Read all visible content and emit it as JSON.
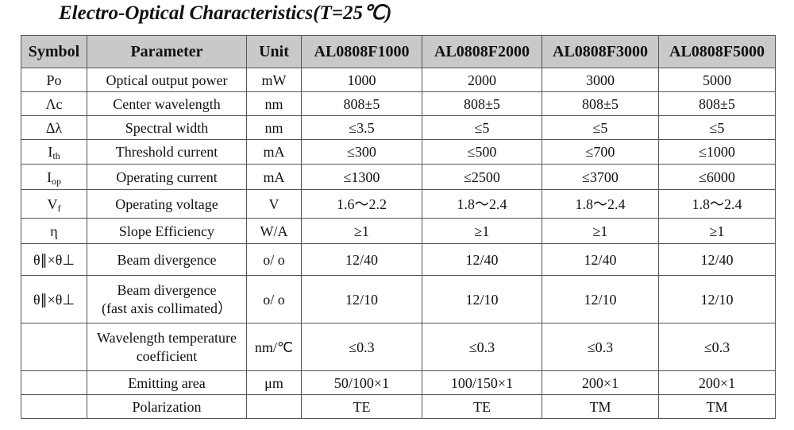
{
  "title": "Electro-Optical Characteristics(T=25℃)",
  "table": {
    "headers": [
      "Symbol",
      "Parameter",
      "Unit",
      "AL0808F1000",
      "AL0808F2000",
      "AL0808F3000",
      "AL0808F5000"
    ],
    "rows": [
      {
        "symbol": "Po",
        "symbol_sub": "",
        "parameter": "Optical output power",
        "unit": "mW",
        "values": [
          "1000",
          "2000",
          "3000",
          "5000"
        ]
      },
      {
        "symbol": "Λc",
        "symbol_sub": "",
        "parameter": "Center wavelength",
        "unit": "nm",
        "values": [
          "808±5",
          "808±5",
          "808±5",
          "808±5"
        ]
      },
      {
        "symbol": "Δλ",
        "symbol_sub": "",
        "parameter": "Spectral width",
        "unit": "nm",
        "values": [
          "≤3.5",
          "≤5",
          "≤5",
          "≤5"
        ]
      },
      {
        "symbol": "I",
        "symbol_sub": "th",
        "parameter": "Threshold current",
        "unit": "mA",
        "values": [
          "≤300",
          "≤500",
          "≤700",
          "≤1000"
        ]
      },
      {
        "symbol": "I",
        "symbol_sub": "op",
        "parameter": "Operating current",
        "unit": "mA",
        "values": [
          "≤1300",
          "≤2500",
          "≤3700",
          "≤6000"
        ]
      },
      {
        "symbol": "V",
        "symbol_sub": "f",
        "parameter": "Operating voltage",
        "unit": "V",
        "values": [
          "1.6～2.2",
          "1.8～2.4",
          "1.8～2.4",
          "1.8～2.4"
        ]
      },
      {
        "symbol": "η",
        "symbol_sub": "",
        "parameter": "Slope Efficiency",
        "unit": "W/A",
        "values": [
          "≥1",
          "≥1",
          "≥1",
          "≥1"
        ]
      },
      {
        "symbol": "θ∥×θ⊥",
        "symbol_sub": "",
        "parameter": "Beam divergence",
        "unit": "o/ o",
        "values": [
          "12/40",
          "12/40",
          "12/40",
          "12/40"
        ]
      },
      {
        "symbol": "θ∥×θ⊥",
        "symbol_sub": "",
        "parameter": "Beam divergence",
        "parameter2": "(fast axis collimated）",
        "unit": "o/ o",
        "values": [
          "12/10",
          "12/10",
          "12/10",
          "12/10"
        ]
      },
      {
        "symbol": "",
        "symbol_sub": "",
        "parameter": "Wavelength temperature",
        "parameter2": "coefficient",
        "unit": "nm/℃",
        "values": [
          "≤0.3",
          "≤0.3",
          "≤0.3",
          "≤0.3"
        ]
      },
      {
        "symbol": "",
        "symbol_sub": "",
        "parameter": "Emitting area",
        "unit": "μm",
        "values": [
          "50/100×1",
          "100/150×1",
          "200×1",
          "200×1"
        ]
      },
      {
        "symbol": "",
        "symbol_sub": "",
        "parameter": "Polarization",
        "unit": "",
        "values": [
          "TE",
          "TE",
          "TM",
          "TM"
        ]
      }
    ]
  }
}
